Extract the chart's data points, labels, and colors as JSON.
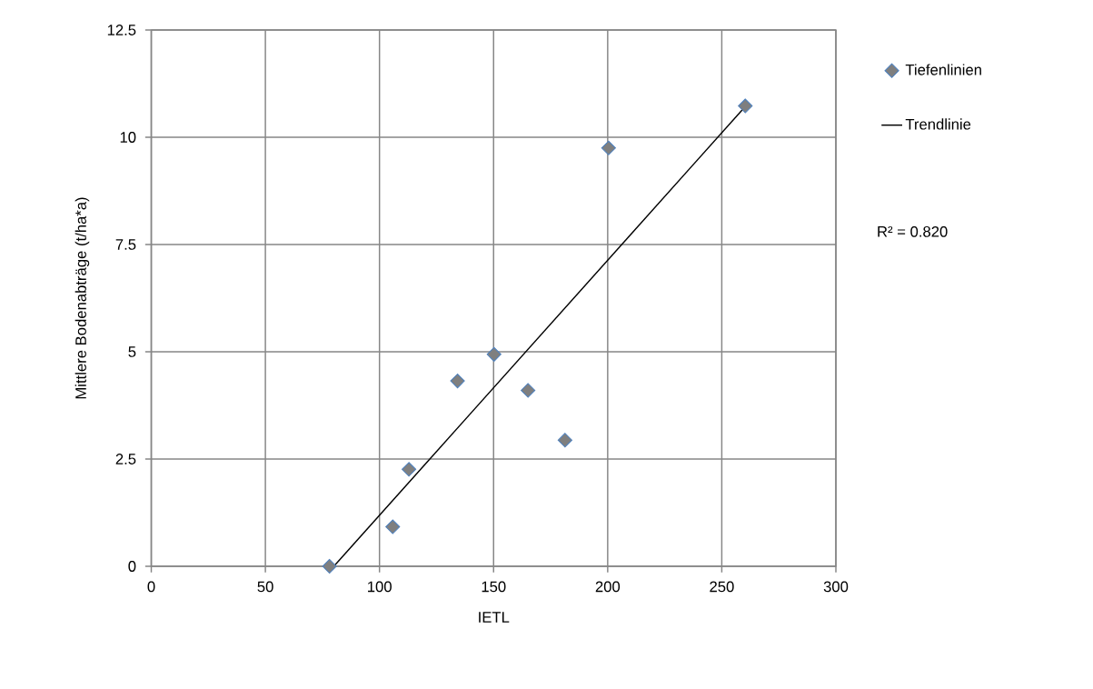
{
  "chart_data": {
    "type": "scatter",
    "xlabel": "IETL",
    "ylabel": "Mittlere Bodenabträge (t/ha*a)",
    "series": [
      {
        "name": "Tiefenlinien",
        "marker": "diamond",
        "color": "#7f7f7f",
        "x": [
          78.1,
          105.8,
          112.9,
          134.2,
          150.2,
          165.1,
          181.3,
          200.4,
          260.3
        ],
        "values": [
          0,
          0.92,
          2.26,
          4.32,
          4.94,
          4.1,
          2.94,
          9.75,
          10.73
        ]
      },
      {
        "name": "Trendlinie",
        "type": "line",
        "marker": "none",
        "color": "#000000",
        "x": [
          80,
          260
        ],
        "values": [
          0,
          10.7
        ]
      }
    ],
    "line_style": "solid",
    "xlim": [
      0,
      300
    ],
    "xticks": [
      0,
      50,
      100,
      150,
      200,
      250,
      300
    ],
    "ylim": [
      0,
      12.5
    ],
    "yticks": [
      0,
      2.5,
      5,
      7.5,
      10,
      12.5
    ],
    "grid": true,
    "legend": "right",
    "annotations": [
      "R² = 0.820"
    ]
  }
}
